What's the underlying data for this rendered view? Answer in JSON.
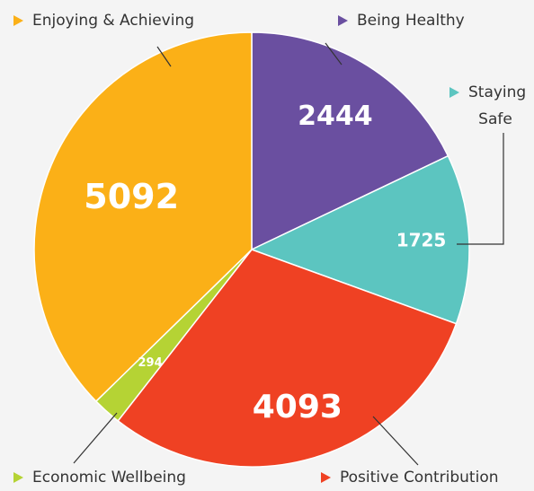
{
  "chart_data": {
    "type": "pie",
    "categories": [
      "Being Healthy",
      "Staying Safe",
      "Positive Contribution",
      "Economic Wellbeing",
      "Enjoying & Achieving"
    ],
    "values": [
      2444,
      1725,
      4093,
      294,
      5092
    ],
    "colors": [
      "#6a4fa0",
      "#5cc5c0",
      "#ef4123",
      "#b5d334",
      "#fbb017"
    ]
  }
}
